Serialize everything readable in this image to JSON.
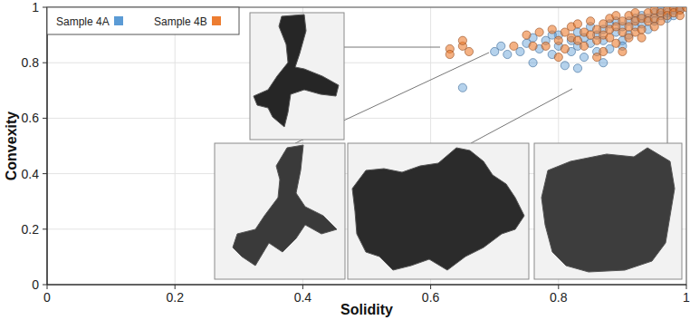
{
  "chart_data": {
    "type": "scatter",
    "x_label": "Solidity",
    "y_label": "Convexity",
    "xlim": [
      0,
      1
    ],
    "ylim": [
      0,
      1
    ],
    "xticks": [
      0,
      0.2,
      0.4,
      0.6,
      0.8,
      1
    ],
    "yticks": [
      0,
      0.2,
      0.4,
      0.6,
      0.8,
      1
    ],
    "grid": true,
    "legend": "upper-left",
    "series": [
      {
        "name": "Sample 4A",
        "color": "#5b9bd5",
        "x": [
          0.65,
          0.7,
          0.71,
          0.72,
          0.74,
          0.75,
          0.76,
          0.77,
          0.78,
          0.79,
          0.8,
          0.8,
          0.81,
          0.82,
          0.82,
          0.83,
          0.83,
          0.84,
          0.84,
          0.85,
          0.85,
          0.86,
          0.86,
          0.87,
          0.87,
          0.88,
          0.88,
          0.89,
          0.89,
          0.9,
          0.9,
          0.91,
          0.91,
          0.92,
          0.92,
          0.93,
          0.93,
          0.94,
          0.94,
          0.95,
          0.95,
          0.96,
          0.96,
          0.97,
          0.97,
          0.98,
          0.98,
          0.99,
          0.99,
          0.87,
          0.83,
          0.79,
          0.76,
          0.9
        ],
        "values": [
          0.71,
          0.84,
          0.86,
          0.83,
          0.84,
          0.87,
          0.8,
          0.85,
          0.88,
          0.83,
          0.86,
          0.9,
          0.79,
          0.88,
          0.84,
          0.91,
          0.86,
          0.82,
          0.89,
          0.93,
          0.87,
          0.84,
          0.9,
          0.92,
          0.88,
          0.94,
          0.85,
          0.91,
          0.95,
          0.88,
          0.93,
          0.95,
          0.9,
          0.96,
          0.93,
          0.97,
          0.94,
          0.96,
          0.92,
          0.98,
          0.95,
          0.97,
          0.99,
          0.98,
          0.96,
          0.99,
          0.97,
          0.99,
          1.0,
          0.8,
          0.78,
          0.9,
          0.89,
          0.86
        ]
      },
      {
        "name": "Sample 4B",
        "color": "#ed7d31",
        "x": [
          0.63,
          0.63,
          0.65,
          0.65,
          0.66,
          0.73,
          0.75,
          0.77,
          0.78,
          0.79,
          0.8,
          0.81,
          0.81,
          0.82,
          0.82,
          0.83,
          0.83,
          0.84,
          0.84,
          0.85,
          0.85,
          0.86,
          0.86,
          0.87,
          0.87,
          0.87,
          0.88,
          0.88,
          0.88,
          0.89,
          0.89,
          0.89,
          0.9,
          0.9,
          0.91,
          0.91,
          0.91,
          0.92,
          0.92,
          0.92,
          0.93,
          0.93,
          0.94,
          0.94,
          0.95,
          0.95,
          0.95,
          0.96,
          0.96,
          0.97,
          0.97,
          0.98,
          0.98,
          0.99,
          0.99,
          1.0,
          0.86,
          0.8,
          0.76,
          0.9,
          0.93
        ],
        "values": [
          0.85,
          0.83,
          0.86,
          0.88,
          0.84,
          0.86,
          0.9,
          0.91,
          0.86,
          0.92,
          0.88,
          0.91,
          0.85,
          0.93,
          0.89,
          0.88,
          0.94,
          0.91,
          0.86,
          0.9,
          0.95,
          0.92,
          0.88,
          0.94,
          0.9,
          0.84,
          0.96,
          0.92,
          0.89,
          0.93,
          0.97,
          0.87,
          0.95,
          0.91,
          0.97,
          0.93,
          0.89,
          0.98,
          0.95,
          0.91,
          0.96,
          0.92,
          0.98,
          0.95,
          0.99,
          0.96,
          0.93,
          0.98,
          0.95,
          0.99,
          0.97,
          1.0,
          0.98,
          0.99,
          0.97,
          1.0,
          0.82,
          0.82,
          0.86,
          0.84,
          0.89
        ]
      }
    ]
  }
}
